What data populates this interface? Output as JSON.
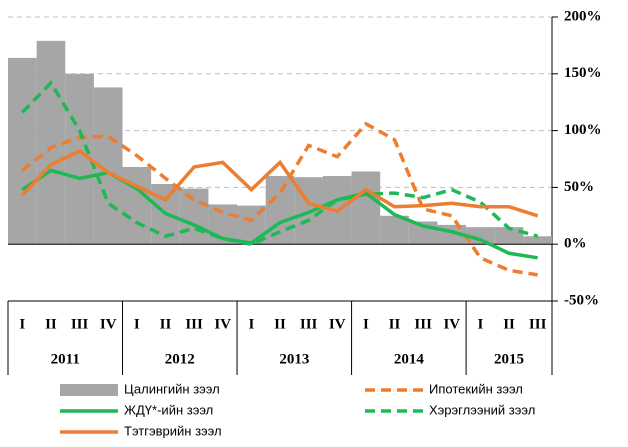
{
  "chart_data": {
    "type": "bar_line",
    "categories": [
      "I",
      "II",
      "III",
      "IV",
      "I",
      "II",
      "III",
      "IV",
      "I",
      "II",
      "III",
      "IV",
      "I",
      "II",
      "III",
      "IV",
      "I",
      "II",
      "III"
    ],
    "groups": [
      {
        "label": "2011",
        "count": 4
      },
      {
        "label": "2012",
        "count": 4
      },
      {
        "label": "2013",
        "count": 4
      },
      {
        "label": "2014",
        "count": 4
      },
      {
        "label": "2015",
        "count": 3
      }
    ],
    "series": [
      {
        "name": "Цалингийн зээл",
        "type": "bar",
        "color": "#a6a6a6",
        "values": [
          164,
          179,
          150,
          138,
          68,
          53,
          49,
          35,
          34,
          60,
          59,
          60,
          64,
          25,
          20,
          17,
          15,
          15,
          7
        ]
      },
      {
        "name": "Ипотекийн зээл",
        "type": "line",
        "dash": true,
        "color": "#ed7d31",
        "values": [
          65,
          85,
          94,
          95,
          78,
          58,
          39,
          28,
          21,
          45,
          87,
          77,
          106,
          92,
          31,
          25,
          -12,
          -23,
          -27
        ]
      },
      {
        "name": "ЖДҮ*-ийн зээл",
        "type": "line",
        "dash": false,
        "color": "#1db954",
        "values": [
          48,
          65,
          58,
          63,
          49,
          27,
          17,
          5,
          1,
          19,
          28,
          39,
          45,
          26,
          16,
          11,
          4,
          -8,
          -12
        ]
      },
      {
        "name": "Хэрэглээний зээл",
        "type": "line",
        "dash": true,
        "color": "#1db954",
        "values": [
          116,
          142,
          100,
          36,
          19,
          7,
          14,
          5,
          0,
          11,
          21,
          39,
          44,
          45,
          41,
          48,
          37,
          14,
          7
        ]
      },
      {
        "name": "Тэтгэврийн зээл",
        "type": "line",
        "dash": false,
        "color": "#ed7d31",
        "values": [
          43,
          70,
          82,
          63,
          51,
          39,
          68,
          72,
          48,
          72,
          36,
          29,
          48,
          33,
          34,
          36,
          33,
          33,
          25
        ]
      }
    ],
    "ylim": [
      -50,
      200
    ],
    "yticks": [
      {
        "value": -50,
        "label": "-50%"
      },
      {
        "value": 0,
        "label": "0%"
      },
      {
        "value": 50,
        "label": "50%"
      },
      {
        "value": 100,
        "label": "100%"
      },
      {
        "value": 150,
        "label": "150%"
      },
      {
        "value": 200,
        "label": "200%"
      }
    ],
    "grid": true
  }
}
